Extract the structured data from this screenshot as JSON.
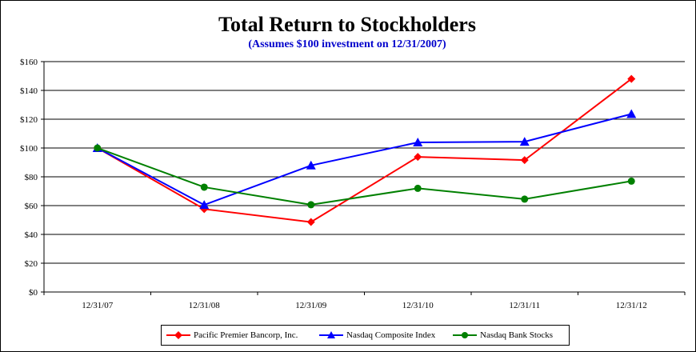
{
  "chart_data": {
    "type": "line",
    "title": "Total Return to Stockholders",
    "subtitle": "(Assumes $100 investment  on 12/31/2007)",
    "categories": [
      "12/31/07",
      "12/31/08",
      "12/31/09",
      "12/31/10",
      "12/31/11",
      "12/31/12"
    ],
    "y_ticks": [
      0,
      20,
      40,
      60,
      80,
      100,
      120,
      140,
      160
    ],
    "y_tick_labels": [
      "$0",
      "$20",
      "$40",
      "$60",
      "$80",
      "$100",
      "$120",
      "$140",
      "$160"
    ],
    "ylim": [
      0,
      160
    ],
    "grid": true,
    "legend_position": "bottom",
    "series": [
      {
        "name": "Pacific Premier Bancorp, Inc.",
        "color": "#ff0000",
        "marker": "diamond",
        "values": [
          100,
          57.6,
          48.6,
          93.8,
          91.6,
          148.0
        ]
      },
      {
        "name": "Nasdaq Composite Index",
        "color": "#0000ff",
        "marker": "triangle",
        "values": [
          100,
          60.5,
          87.9,
          103.9,
          104.4,
          123.6
        ]
      },
      {
        "name": "Nasdaq Bank Stocks",
        "color": "#008000",
        "marker": "circle",
        "values": [
          100,
          72.8,
          60.6,
          72.0,
          64.5,
          77.0
        ]
      }
    ]
  }
}
